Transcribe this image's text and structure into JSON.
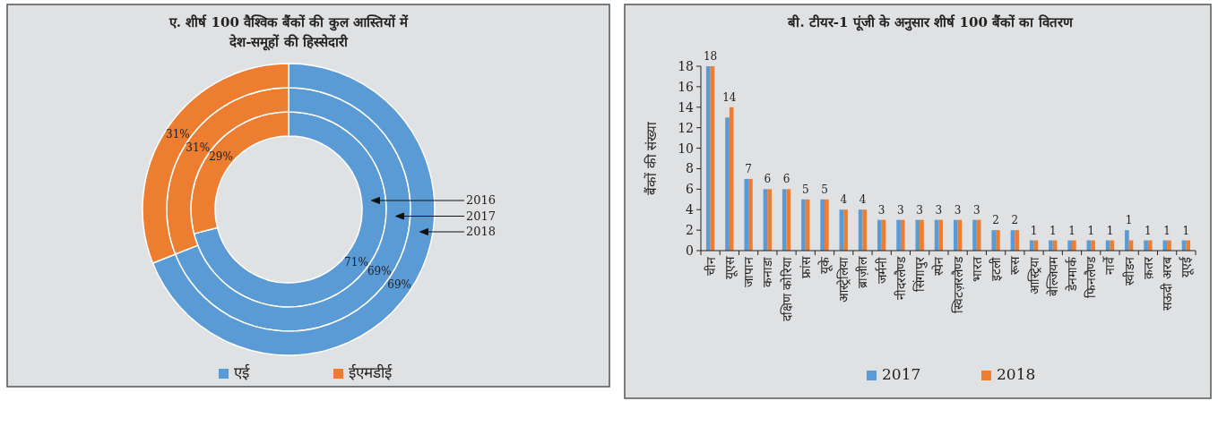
{
  "chart_data": [
    {
      "type": "donut",
      "title": "ए. शीर्ष 100 वैश्विक बैंकों की कुल आस्तियों में\nदेश-समूहों की हिस्सेदारी",
      "categories": [
        "एई",
        "ईएमडीई"
      ],
      "colors": [
        "#5b9bd5",
        "#ed7d31"
      ],
      "legend": "bottom",
      "series": [
        {
          "name": "2016",
          "values": [
            71,
            29
          ],
          "value_labels": [
            "71%",
            "29%"
          ]
        },
        {
          "name": "2017",
          "values": [
            69,
            31
          ],
          "value_labels": [
            "69%",
            "31%"
          ]
        },
        {
          "name": "2018",
          "values": [
            69,
            31
          ],
          "value_labels": [
            "69%",
            "31%"
          ]
        }
      ]
    },
    {
      "type": "bar",
      "title": "बी. टीयर-1 पूंजी के अनुसार शीर्ष 100 बैंकों का वितरण",
      "ylabel": "बैंकों की संख्या",
      "legend": "bottom",
      "categories": [
        "चीन",
        "यूएस",
        "जापान",
        "कनाडा",
        "दक्षिण कोरिया",
        "फ्रांस",
        "यूके",
        "आस्ट्रेलिया",
        "ब्राज़ील",
        "जर्मनी",
        "नीदरलैण्ड",
        "सिंगापुर",
        "स्पेन",
        "स्विटज़रलैण्ड",
        "भारत",
        "इटली",
        "रूस",
        "आस्ट्रिया",
        "बेल्जियम",
        "डेनमार्क",
        "फिनलैण्ड",
        "नार्वे",
        "स्वीडन",
        "क़तर",
        "सऊदी अरब",
        "यूएई"
      ],
      "ylim": [
        0,
        18
      ],
      "yticks": [
        0,
        2,
        4,
        6,
        8,
        10,
        12,
        14,
        16,
        18
      ],
      "series": [
        {
          "name": "2017",
          "color": "#5b9bd5",
          "values": [
            18,
            13,
            7,
            6,
            6,
            5,
            5,
            4,
            4,
            3,
            3,
            3,
            3,
            3,
            3,
            2,
            2,
            1,
            1,
            1,
            1,
            1,
            2,
            1,
            1,
            1
          ]
        },
        {
          "name": "2018",
          "color": "#ed7d31",
          "values": [
            18,
            14,
            7,
            6,
            6,
            5,
            5,
            4,
            4,
            3,
            3,
            3,
            3,
            3,
            3,
            2,
            2,
            1,
            1,
            1,
            1,
            1,
            1,
            1,
            1,
            1
          ],
          "value_labels": [
            "18",
            "14",
            "7",
            "6",
            "6",
            "5",
            "5",
            "4",
            "4",
            "3",
            "3",
            "3",
            "3",
            "3",
            "3",
            "2",
            "2",
            "1",
            "1",
            "1",
            "1",
            "1",
            "1",
            "1",
            "1",
            "1"
          ]
        }
      ]
    }
  ]
}
